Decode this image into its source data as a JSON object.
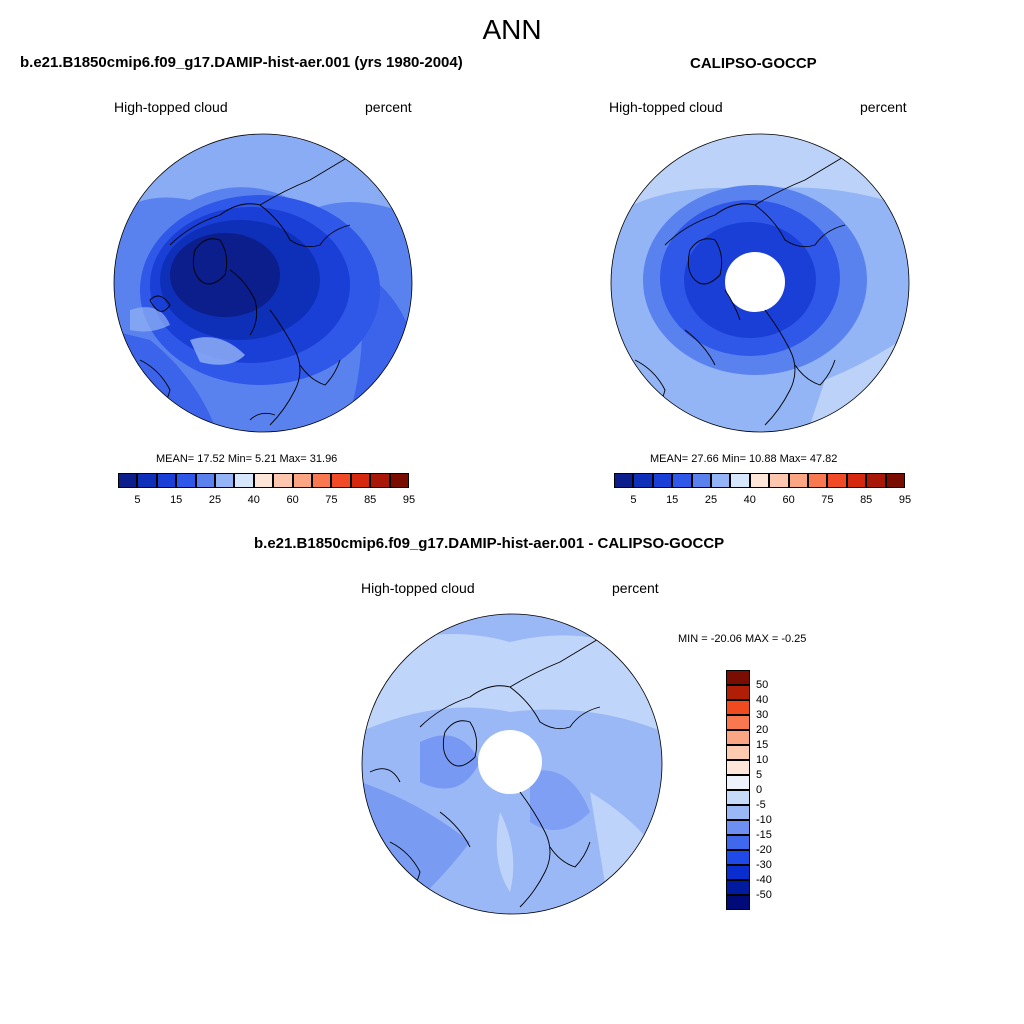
{
  "figure": {
    "title": "ANN"
  },
  "colors": {
    "abs_palette": [
      "#0b1e8c",
      "#0e2fb8",
      "#1a3fd6",
      "#2f57e8",
      "#5a82ef",
      "#93b4f5",
      "#d6e6fb",
      "#fde6d8",
      "#fcc7ae",
      "#fba582",
      "#f8784f",
      "#f04b26",
      "#d6280f",
      "#a81707",
      "#7a0d02"
    ],
    "diff_palette": [
      "#000a78",
      "#001aa0",
      "#0a2dd0",
      "#1f4ae8",
      "#3f68ec",
      "#6c8ff1",
      "#9ab7f6",
      "#c7dafa",
      "#eef3fb",
      "#fde7d8",
      "#fccbb0",
      "#fba682",
      "#fa7850",
      "#f04b1f",
      "#b01e06",
      "#7a0d02"
    ],
    "coastline": "#000000"
  },
  "panels": {
    "model": {
      "title": "b.e21.B1850cmip6.f09_g17.DAMIP-hist-aer.001 (yrs 1980-2004)",
      "left_label": "High-topped cloud",
      "right_label": "percent",
      "stats_text": "MEAN=  17.52  Min=   5.21  Max=  31.96",
      "stats": {
        "mean": 17.52,
        "min": 5.21,
        "max": 31.96
      }
    },
    "obs": {
      "title": "CALIPSO-GOCCP",
      "left_label": "High-topped cloud",
      "right_label": "percent",
      "stats_text": "MEAN=  27.66  Min=  10.88  Max=  47.82",
      "stats": {
        "mean": 27.66,
        "min": 10.88,
        "max": 47.82
      }
    },
    "diff": {
      "title": "b.e21.B1850cmip6.f09_g17.DAMIP-hist-aer.001 - CALIPSO-GOCCP",
      "left_label": "High-topped cloud",
      "right_label": "percent",
      "stats_text": "MIN = -20.06 MAX =  -0.25",
      "stats": {
        "min": -20.06,
        "max": -0.25
      }
    }
  },
  "colorbars": {
    "abs_ticks": [
      "5",
      "15",
      "25",
      "40",
      "60",
      "75",
      "85",
      "95"
    ],
    "diff_ticks": [
      "50",
      "40",
      "30",
      "20",
      "15",
      "10",
      "5",
      "0",
      "-5",
      "-10",
      "-15",
      "-20",
      "-30",
      "-40",
      "-50"
    ]
  }
}
